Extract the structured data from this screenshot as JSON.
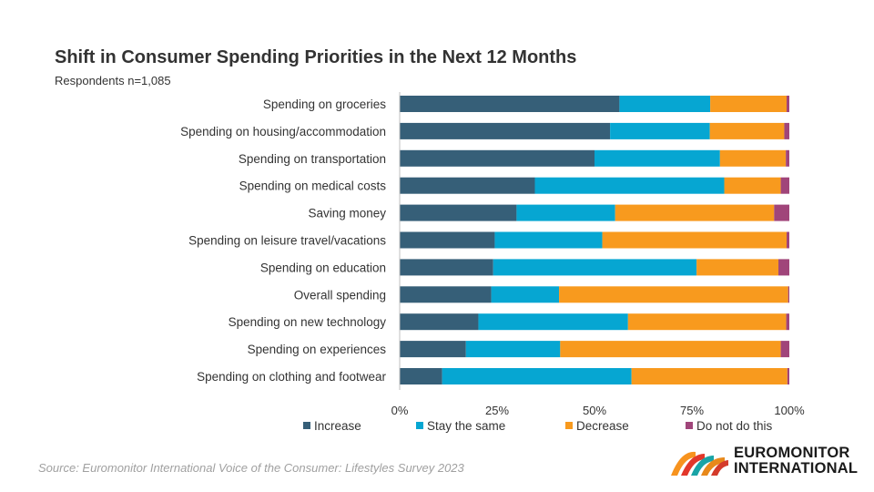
{
  "header": {
    "title": "Shift in Consumer Spending Priorities in the Next 12 Months",
    "subtitle": "Respondents n=1,085"
  },
  "footer": {
    "source": "Source: Euromonitor International Voice of the Consumer: Lifestyles Survey 2023",
    "logo_line1": "EUROMONITOR",
    "logo_line2": "INTERNATIONAL"
  },
  "colors": {
    "increase": "#365f78",
    "stay": "#06a6d2",
    "decrease": "#f89a1e",
    "dont": "#a0457a"
  },
  "chart_data": {
    "type": "bar",
    "orientation": "horizontal",
    "stacked": "percent",
    "xlim": [
      0,
      100
    ],
    "ticks": [
      "0%",
      "25%",
      "50%",
      "75%",
      "100%"
    ],
    "grid": false,
    "legend_position": "bottom",
    "categories": [
      "Spending on groceries",
      "Spending on housing/accommodation",
      "Spending on transportation",
      "Spending on medical costs",
      "Saving money",
      "Spending on leisure travel/vacations",
      "Spending on education",
      "Overall spending",
      "Spending on new technology",
      "Spending on experiences",
      "Spending on clothing and footwear"
    ],
    "series": [
      {
        "name": "Increase",
        "values": [
          56.4,
          54.0,
          50.0,
          34.7,
          30.0,
          24.4,
          24.0,
          23.5,
          20.2,
          17.0,
          10.9
        ]
      },
      {
        "name": "Stay the same",
        "values": [
          23.3,
          25.6,
          32.2,
          48.6,
          25.3,
          27.6,
          52.2,
          17.4,
          38.4,
          24.2,
          48.6
        ]
      },
      {
        "name": "Decrease",
        "values": [
          19.6,
          19.1,
          16.9,
          14.5,
          40.8,
          47.3,
          21.0,
          58.8,
          40.6,
          56.6,
          40.0
        ]
      },
      {
        "name": "Do not do this",
        "values": [
          0.7,
          1.3,
          0.9,
          2.2,
          3.9,
          0.7,
          2.8,
          0.3,
          0.8,
          2.2,
          0.5
        ]
      }
    ]
  }
}
